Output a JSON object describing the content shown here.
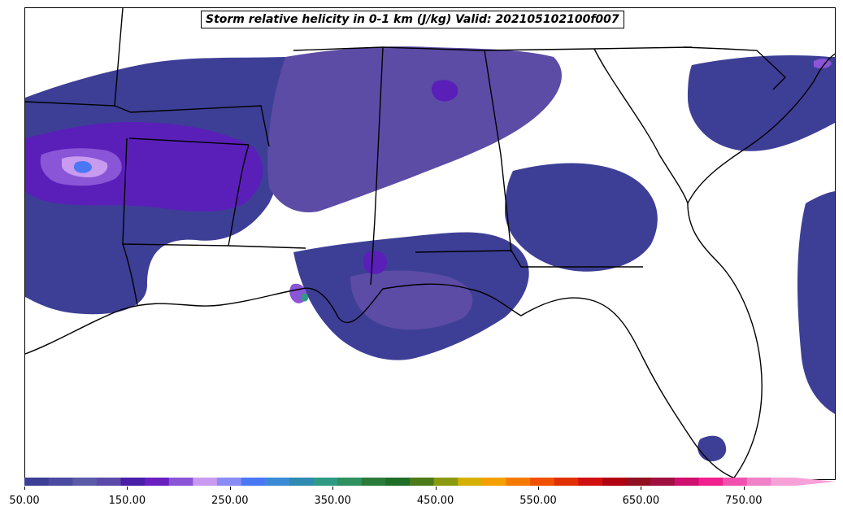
{
  "title": "Storm relative helicity in 0-1 km (J/kg) Valid: 202105102100f007",
  "colorbar": {
    "ticks": [
      "50.00",
      "150.00",
      "250.00",
      "350.00",
      "450.00",
      "550.00",
      "650.00",
      "750.00"
    ],
    "tick_values": [
      50,
      150,
      250,
      350,
      450,
      550,
      650,
      750
    ],
    "min": 50,
    "max": 800,
    "extend": "max",
    "colors": [
      "#3b3f96",
      "#4a4aa0",
      "#5a5aa8",
      "#5b4aa8",
      "#4a1fa8",
      "#6a1fc0",
      "#8a55d6",
      "#c89af0",
      "#8a8cf5",
      "#4a78f5",
      "#3a8ad6",
      "#2f8ab0",
      "#2e9a84",
      "#2f9060",
      "#2a7a3a",
      "#1e6e28",
      "#4a7a1a",
      "#8a9a10",
      "#d6b000",
      "#f5a000",
      "#f57a00",
      "#f05000",
      "#e03000",
      "#d01010",
      "#b00010",
      "#901020",
      "#a01040",
      "#d01070",
      "#f02090",
      "#f050b0",
      "#f080c8",
      "#f8a0d8"
    ]
  },
  "legend": {
    "low_value_fill": "#3d3f96",
    "mid_value_fill": "#5c4ca6",
    "high_value_fill": "#5a1fb8",
    "peak_value_fill": "#c89af0",
    "max_core_fill": "#4a78f5"
  }
}
